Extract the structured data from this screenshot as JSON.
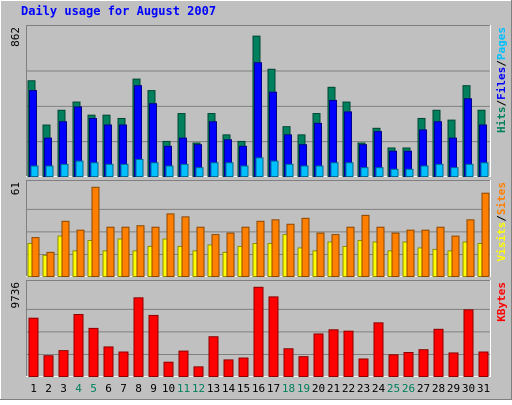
{
  "chart_data": {
    "type": "bar",
    "title": "Daily usage for August 2007",
    "categories": [
      "1",
      "2",
      "3",
      "4",
      "5",
      "6",
      "7",
      "8",
      "9",
      "10",
      "11",
      "12",
      "13",
      "14",
      "15",
      "16",
      "17",
      "18",
      "19",
      "20",
      "21",
      "22",
      "23",
      "24",
      "25",
      "26",
      "27",
      "28",
      "29",
      "30",
      "31"
    ],
    "weekend_days": [
      "4",
      "5",
      "11",
      "12",
      "18",
      "19",
      "25",
      "26"
    ],
    "hits_panel": {
      "max_label": "862",
      "ylim": [
        0,
        862
      ],
      "legend": [
        {
          "text": "Hits",
          "color": "#00805c"
        },
        {
          "text": "Files",
          "color": "#0000ff"
        },
        {
          "text": "Pages",
          "color": "#00c0ff"
        }
      ],
      "series": [
        {
          "name": "Hits",
          "color": "#00805c",
          "values": [
            590,
            320,
            410,
            460,
            380,
            380,
            360,
            600,
            530,
            220,
            390,
            210,
            390,
            260,
            220,
            862,
            660,
            310,
            260,
            390,
            550,
            460,
            210,
            300,
            180,
            180,
            360,
            410,
            350,
            560,
            410
          ]
        },
        {
          "name": "Files",
          "color": "#0000ff",
          "values": [
            530,
            240,
            340,
            430,
            360,
            320,
            320,
            560,
            450,
            190,
            240,
            200,
            340,
            230,
            190,
            700,
            520,
            260,
            200,
            330,
            470,
            400,
            200,
            280,
            160,
            160,
            290,
            340,
            240,
            480,
            320
          ]
        },
        {
          "name": "Pages",
          "color": "#00c0ff",
          "values": [
            70,
            70,
            80,
            100,
            90,
            80,
            80,
            110,
            90,
            70,
            80,
            60,
            90,
            90,
            70,
            120,
            100,
            80,
            70,
            70,
            90,
            90,
            60,
            60,
            50,
            50,
            70,
            80,
            60,
            80,
            90
          ]
        }
      ]
    },
    "visits_panel": {
      "max_label": "61",
      "ylim": [
        0,
        61
      ],
      "legend": [
        {
          "text": "Visits",
          "color": "#ffff00"
        },
        {
          "text": "Sites",
          "color": "#ff8000"
        }
      ],
      "series": [
        {
          "name": "Visits",
          "color": "#ffff00",
          "values": [
            23,
            15,
            28,
            18,
            25,
            18,
            26,
            18,
            21,
            26,
            21,
            18,
            22,
            17,
            21,
            23,
            23,
            29,
            20,
            18,
            24,
            21,
            25,
            24,
            18,
            24,
            20,
            19,
            18,
            24,
            23
          ]
        },
        {
          "name": "Sites",
          "color": "#ff8000",
          "values": [
            27,
            17,
            38,
            32,
            61,
            34,
            34,
            35,
            34,
            43,
            41,
            34,
            29,
            30,
            34,
            38,
            39,
            36,
            40,
            30,
            29,
            34,
            42,
            34,
            30,
            32,
            32,
            34,
            28,
            39,
            57
          ]
        }
      ]
    },
    "kbytes_panel": {
      "max_label": "9736",
      "ylim": [
        0,
        9736
      ],
      "legend": [
        {
          "text": "KBytes",
          "color": "#ff0000"
        }
      ],
      "series": [
        {
          "name": "KBytes",
          "color": "#ff0000",
          "values": [
            6400,
            2350,
            2900,
            6800,
            5300,
            3300,
            2750,
            8600,
            6700,
            1650,
            2850,
            1150,
            4400,
            1900,
            2100,
            9736,
            8700,
            3100,
            2250,
            4700,
            5150,
            5000,
            2000,
            5900,
            2450,
            2700,
            3000,
            5200,
            2650,
            7300,
            2750
          ]
        }
      ]
    }
  }
}
